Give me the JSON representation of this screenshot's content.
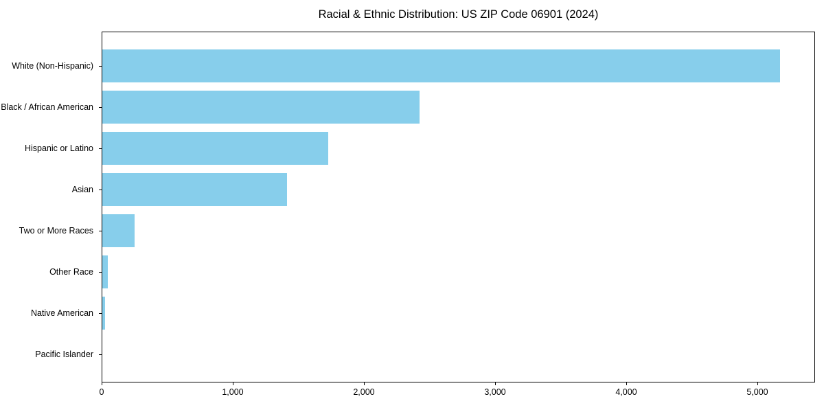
{
  "title": "Racial & Ethnic Distribution: US ZIP Code 06901 (2024)",
  "colors": {
    "bar": "#87CEEB",
    "axis": "#000000",
    "background": "#FFFFFF",
    "text": "#000000"
  },
  "chart_data": {
    "type": "bar",
    "orientation": "horizontal",
    "title": "Racial & Ethnic Distribution: US ZIP Code 06901 (2024)",
    "categories": [
      "White (Non-Hispanic)",
      "Black / African American",
      "Hispanic or Latino",
      "Asian",
      "Two or More Races",
      "Other Race",
      "Native American",
      "Pacific Islander"
    ],
    "values": [
      5178,
      2421,
      1727,
      1413,
      248,
      43,
      22,
      0
    ],
    "bar_color": "#87CEEB",
    "xlabel": "",
    "ylabel": "",
    "xlim": [
      0,
      5440
    ],
    "x_ticks": [
      0,
      1000,
      2000,
      3000,
      4000,
      5000
    ],
    "x_tick_labels": [
      "0",
      "1,000",
      "2,000",
      "3,000",
      "4,000",
      "5,000"
    ],
    "grid": false,
    "legend": null,
    "category_order": "largest_at_top"
  }
}
